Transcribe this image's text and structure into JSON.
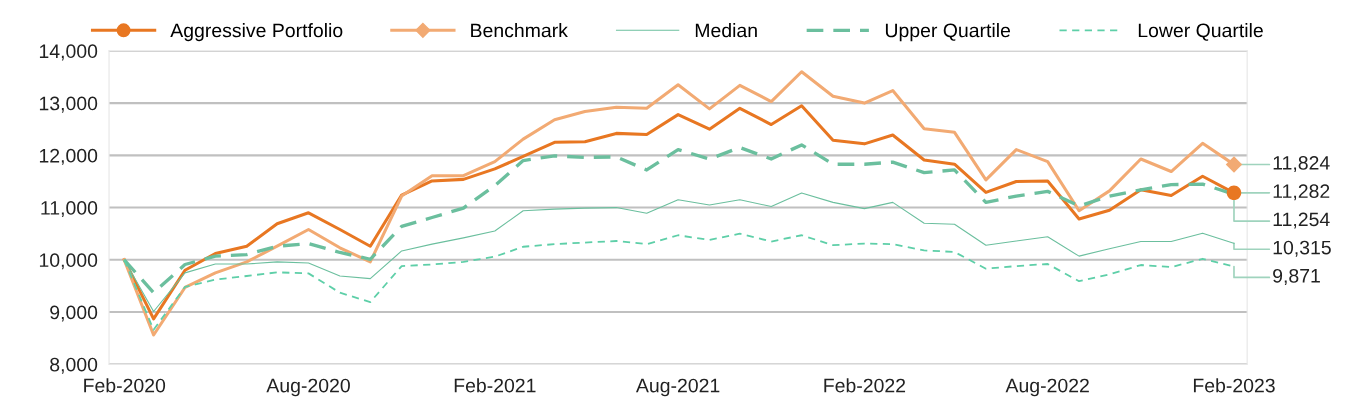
{
  "chart_data": {
    "type": "line",
    "x": [
      "2020-02",
      "2020-03",
      "2020-04",
      "2020-05",
      "2020-06",
      "2020-07",
      "2020-08",
      "2020-09",
      "2020-10",
      "2020-11",
      "2020-12",
      "2021-01",
      "2021-02",
      "2021-03",
      "2021-04",
      "2021-05",
      "2021-06",
      "2021-07",
      "2021-08",
      "2021-09",
      "2021-10",
      "2021-11",
      "2021-12",
      "2022-01",
      "2022-02",
      "2022-03",
      "2022-04",
      "2022-05",
      "2022-06",
      "2022-07",
      "2022-08",
      "2022-09",
      "2022-10",
      "2022-11",
      "2022-12",
      "2023-01",
      "2023-02"
    ],
    "series": [
      {
        "name": "Aggressive Portfolio",
        "color": "#e87722",
        "line_style": "solid",
        "values": [
          10000,
          8870,
          9800,
          10120,
          10260,
          10690,
          10900,
          10580,
          10260,
          11240,
          11510,
          11540,
          11740,
          11980,
          12250,
          12260,
          12420,
          12400,
          12780,
          12500,
          12900,
          12590,
          12950,
          12290,
          12220,
          12390,
          11910,
          11830,
          11290,
          11500,
          11510,
          10780,
          10950,
          11340,
          11230,
          11600,
          11282
        ],
        "value_labels": [
          null,
          null,
          null,
          null,
          null,
          null,
          null,
          null,
          null,
          null,
          null,
          null,
          null,
          null,
          null,
          null,
          null,
          null,
          null,
          null,
          null,
          null,
          null,
          null,
          null,
          null,
          null,
          null,
          null,
          null,
          null,
          null,
          null,
          null,
          null,
          null,
          "11,282"
        ]
      },
      {
        "name": "Benchmark",
        "color": "#f2aa73",
        "line_style": "solid",
        "values": [
          10000,
          8560,
          9470,
          9750,
          9960,
          10260,
          10580,
          10230,
          9960,
          11220,
          11610,
          11610,
          11880,
          12310,
          12680,
          12840,
          12920,
          12900,
          13350,
          12890,
          13340,
          13030,
          13600,
          13130,
          13000,
          13240,
          12510,
          12440,
          11530,
          12110,
          11880,
          10940,
          11320,
          11930,
          11690,
          12230,
          11824
        ],
        "value_labels": [
          null,
          null,
          null,
          null,
          null,
          null,
          null,
          null,
          null,
          null,
          null,
          null,
          null,
          null,
          null,
          null,
          null,
          null,
          null,
          null,
          null,
          null,
          null,
          null,
          null,
          null,
          null,
          null,
          null,
          null,
          null,
          null,
          null,
          null,
          null,
          null,
          "11,824"
        ]
      },
      {
        "name": "Median",
        "color": "#6bbf9e",
        "marker": "none",
        "line_style": "solid",
        "values": [
          10000,
          9010,
          9750,
          9920,
          9920,
          9960,
          9940,
          9690,
          9640,
          10170,
          10300,
          10420,
          10550,
          10940,
          10970,
          10990,
          11000,
          10890,
          11150,
          11050,
          11150,
          11020,
          11280,
          11100,
          10980,
          11100,
          10700,
          10680,
          10280,
          10360,
          10440,
          10070,
          10210,
          10350,
          10350,
          10510,
          10315
        ],
        "value_labels": [
          null,
          null,
          null,
          null,
          null,
          null,
          null,
          null,
          null,
          null,
          null,
          null,
          null,
          null,
          null,
          null,
          null,
          null,
          null,
          null,
          null,
          null,
          null,
          null,
          null,
          null,
          null,
          null,
          null,
          null,
          null,
          null,
          null,
          null,
          null,
          null,
          "10,315"
        ]
      },
      {
        "name": "Upper Quartile",
        "color": "#6bbf9e",
        "marker": "none",
        "line_style": "dashed",
        "values": [
          10000,
          9370,
          9910,
          10070,
          10100,
          10260,
          10310,
          10140,
          10010,
          10640,
          10810,
          10990,
          11420,
          11900,
          11990,
          11960,
          11970,
          11720,
          12110,
          11930,
          12150,
          11930,
          12200,
          11830,
          11830,
          11870,
          11670,
          11720,
          11100,
          11220,
          11310,
          11030,
          11220,
          11340,
          11440,
          11450,
          11254
        ],
        "value_labels": [
          null,
          null,
          null,
          null,
          null,
          null,
          null,
          null,
          null,
          null,
          null,
          null,
          null,
          null,
          null,
          null,
          null,
          null,
          null,
          null,
          null,
          null,
          null,
          null,
          null,
          null,
          null,
          null,
          null,
          null,
          null,
          null,
          null,
          null,
          null,
          null,
          "11,254"
        ]
      },
      {
        "name": "Lower Quartile",
        "color": "#5ecfa8",
        "marker": "none",
        "line_style": "dashed",
        "values": [
          10000,
          8660,
          9480,
          9620,
          9690,
          9760,
          9740,
          9370,
          9190,
          9880,
          9910,
          9960,
          10060,
          10250,
          10300,
          10330,
          10360,
          10300,
          10470,
          10380,
          10500,
          10350,
          10470,
          10280,
          10310,
          10300,
          10180,
          10150,
          9830,
          9880,
          9920,
          9590,
          9720,
          9900,
          9860,
          10020,
          9871
        ],
        "value_labels": [
          null,
          null,
          null,
          null,
          null,
          null,
          null,
          null,
          null,
          null,
          null,
          null,
          null,
          null,
          null,
          null,
          null,
          null,
          null,
          null,
          null,
          null,
          null,
          null,
          null,
          null,
          null,
          null,
          null,
          null,
          null,
          null,
          null,
          null,
          null,
          null,
          "9,871"
        ]
      },
      {
        "type": "scatter",
        "color": "#e87722",
        "marker": "circle",
        "x": [
          "2023-02"
        ],
        "values": [
          11282
        ]
      },
      {
        "type": "scatter",
        "color": "#f2aa73",
        "marker": "diamond",
        "x": [
          "2023-02"
        ],
        "values": [
          11824
        ]
      }
    ],
    "xlim": [
      "2020-01-17",
      "2023-02-14"
    ],
    "xticks": [
      {
        "value": "2020-02",
        "label": "Feb-2020"
      },
      {
        "value": "2020-08",
        "label": "Aug-2020"
      },
      {
        "value": "2021-02",
        "label": "Feb-2021"
      },
      {
        "value": "2021-08",
        "label": "Aug-2021"
      },
      {
        "value": "2022-02",
        "label": "Feb-2022"
      },
      {
        "value": "2022-08",
        "label": "Aug-2022"
      },
      {
        "value": "2023-02",
        "label": "Feb-2023"
      }
    ],
    "ylim": [
      8000,
      14000
    ],
    "yticks": [
      {
        "value": 8000,
        "label": "8,000"
      },
      {
        "value": 9000,
        "label": "9,000"
      },
      {
        "value": 10000,
        "label": "10,000"
      },
      {
        "value": 11000,
        "label": "11,000"
      },
      {
        "value": 12000,
        "label": "12,000"
      },
      {
        "value": 13000,
        "label": "13,000"
      },
      {
        "value": 14000,
        "label": "14,000"
      }
    ],
    "grid": "y",
    "legend": "top"
  }
}
